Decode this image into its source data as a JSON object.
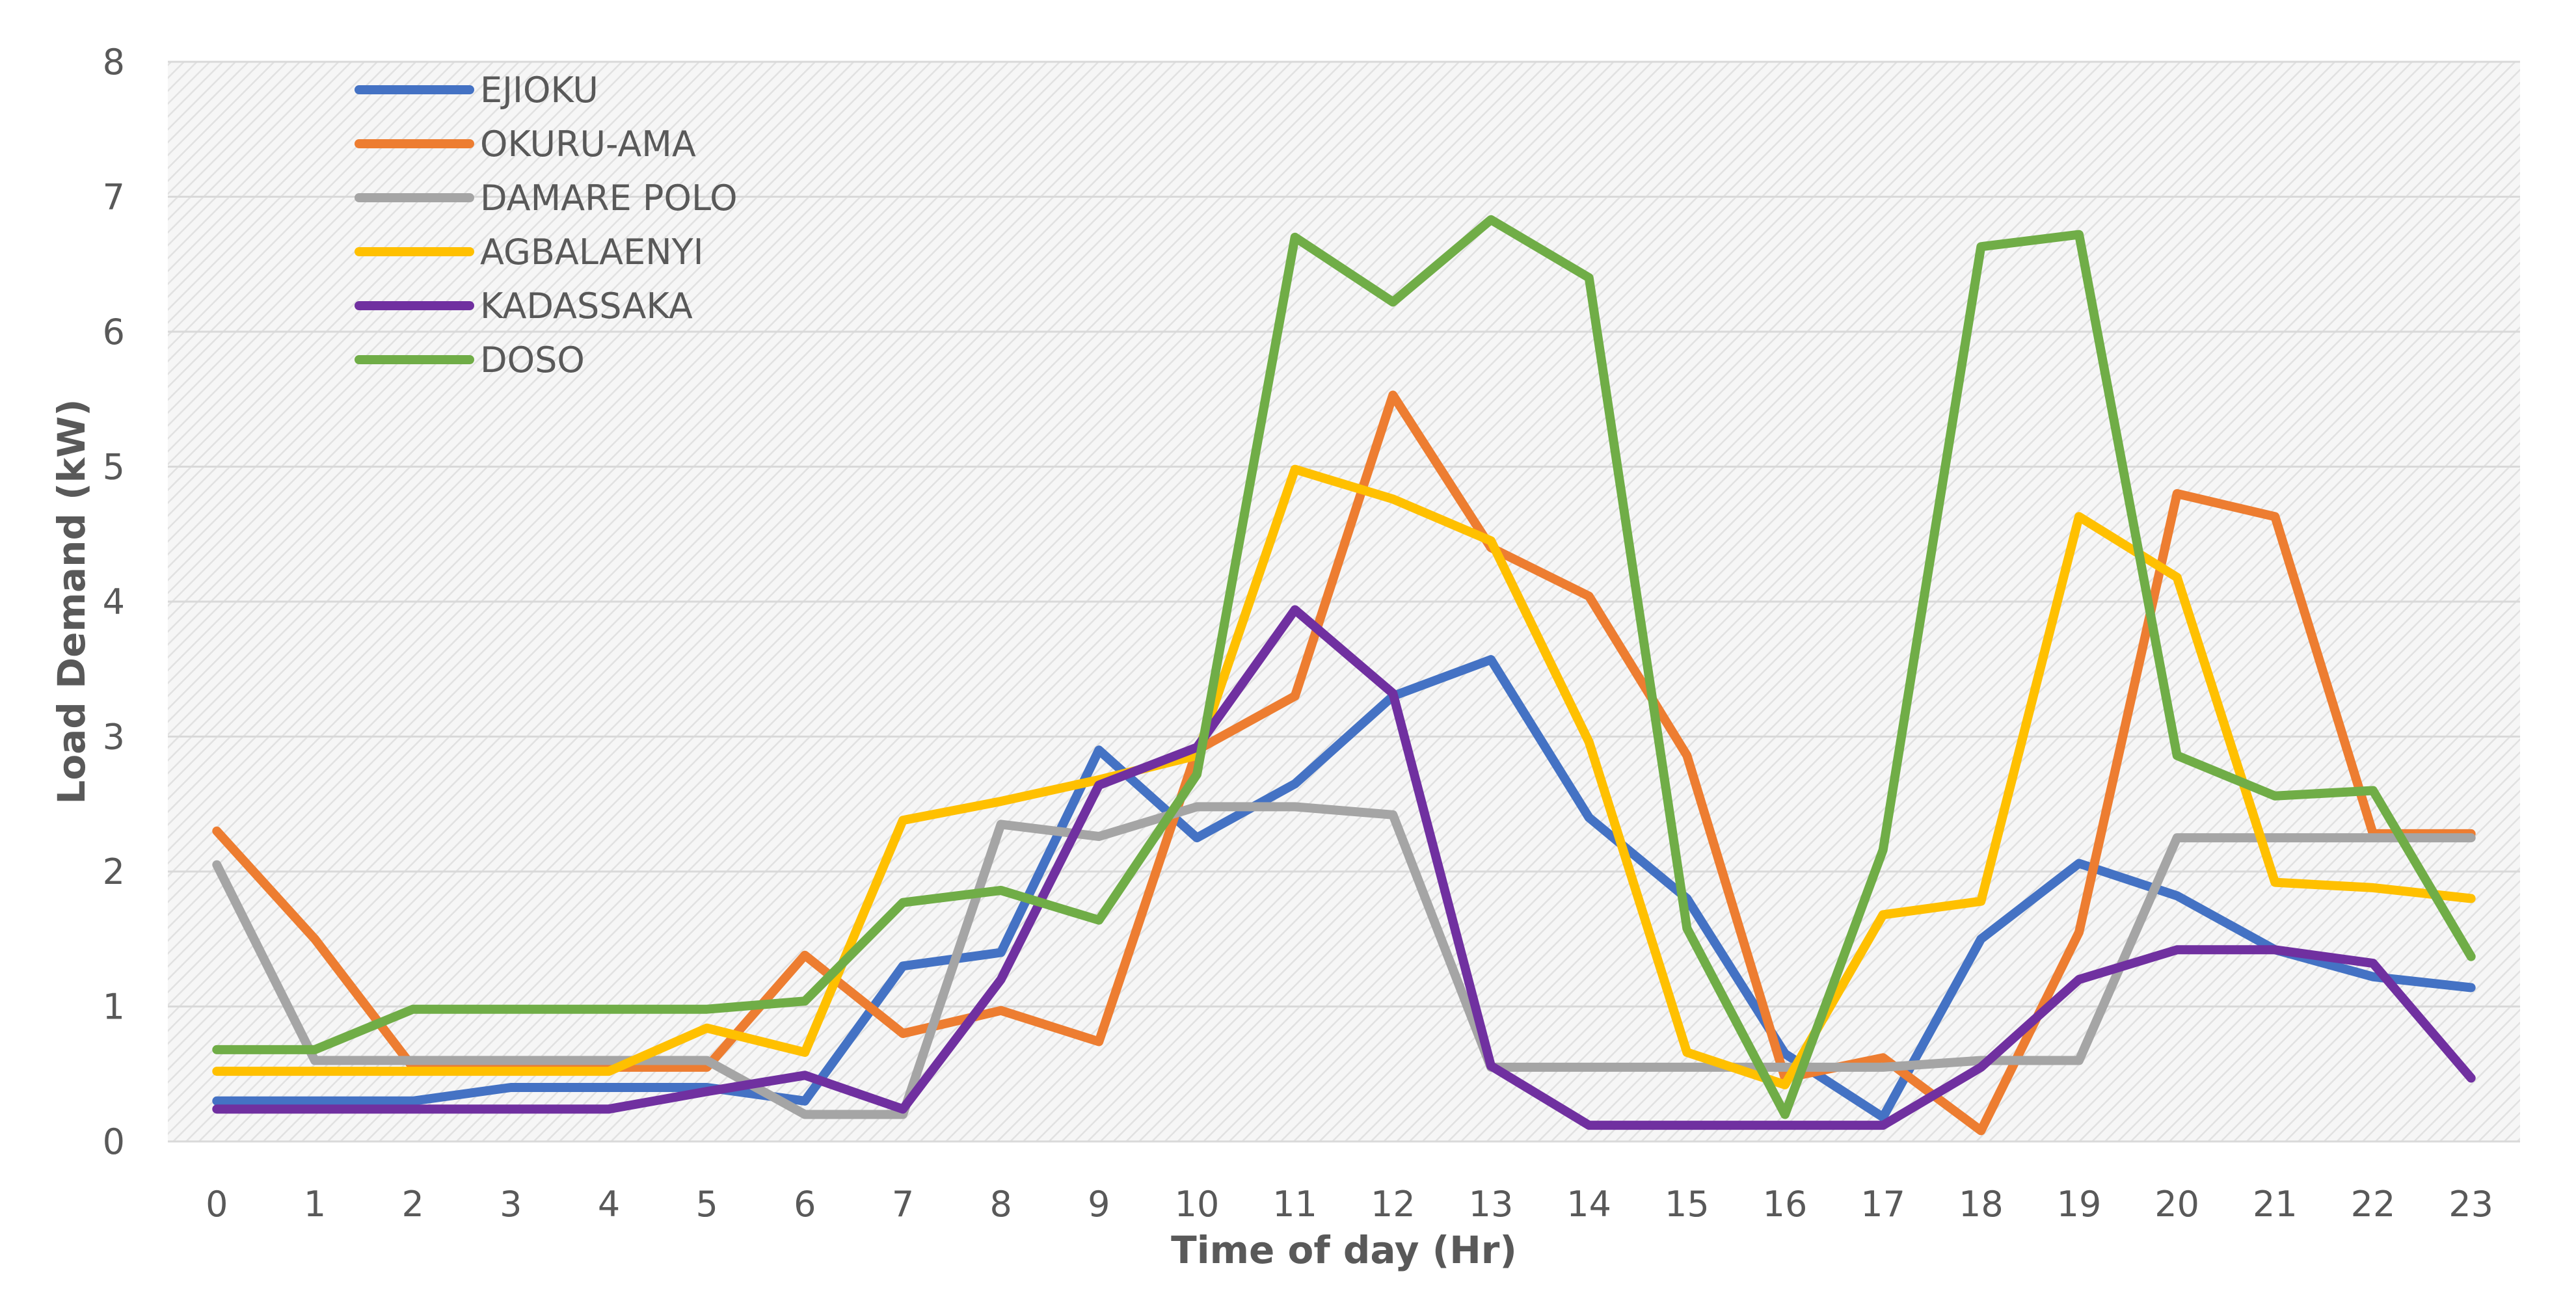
{
  "chart_data": {
    "type": "line",
    "title": "",
    "xlabel": "Time of day (Hr)",
    "ylabel": "Load Demand (kW)",
    "ylim": [
      0,
      8
    ],
    "yticks": [
      "0",
      "1",
      "2",
      "3",
      "4",
      "5",
      "6",
      "7",
      "8"
    ],
    "x": [
      "0",
      "1",
      "2",
      "3",
      "4",
      "5",
      "6",
      "7",
      "8",
      "9",
      "10",
      "11",
      "12",
      "13",
      "14",
      "15",
      "16",
      "17",
      "18",
      "19",
      "20",
      "21",
      "22",
      "23"
    ],
    "legend_position": "top-left",
    "grid": true,
    "series": [
      {
        "name": "EJIOKU",
        "color": "#4472C4",
        "values": [
          0.3,
          0.3,
          0.3,
          0.4,
          0.4,
          0.4,
          0.3,
          1.3,
          1.4,
          2.9,
          2.25,
          2.65,
          3.3,
          3.57,
          2.4,
          1.8,
          0.65,
          0.18,
          1.5,
          2.06,
          1.82,
          1.42,
          1.22,
          1.14
        ]
      },
      {
        "name": "OKURU-AMA",
        "color": "#ED7D31",
        "values": [
          2.3,
          1.5,
          0.55,
          0.55,
          0.55,
          0.55,
          1.38,
          0.8,
          0.97,
          0.74,
          2.9,
          3.3,
          5.53,
          4.4,
          4.04,
          2.86,
          0.47,
          0.62,
          0.08,
          1.55,
          4.8,
          4.63,
          2.28,
          2.28
        ]
      },
      {
        "name": "DAMARE POLO",
        "color": "#A5A5A5",
        "values": [
          2.05,
          0.6,
          0.6,
          0.6,
          0.6,
          0.6,
          0.2,
          0.2,
          2.35,
          2.26,
          2.48,
          2.48,
          2.42,
          0.55,
          0.55,
          0.55,
          0.55,
          0.55,
          0.6,
          0.6,
          2.25,
          2.25,
          2.25,
          2.25
        ]
      },
      {
        "name": "AGBALAENYI",
        "color": "#FFC000",
        "values": [
          0.52,
          0.52,
          0.52,
          0.52,
          0.52,
          0.84,
          0.66,
          2.38,
          2.52,
          2.68,
          2.86,
          4.98,
          4.76,
          4.45,
          2.96,
          0.66,
          0.42,
          1.68,
          1.78,
          4.63,
          4.18,
          1.92,
          1.88,
          1.8
        ]
      },
      {
        "name": "KADASSAKA",
        "color": "#7030A0",
        "values": [
          0.24,
          0.24,
          0.24,
          0.24,
          0.24,
          0.37,
          0.49,
          0.24,
          1.2,
          2.64,
          2.92,
          3.94,
          3.32,
          0.56,
          0.12,
          0.12,
          0.12,
          0.12,
          0.55,
          1.2,
          1.42,
          1.42,
          1.32,
          0.47
        ]
      },
      {
        "name": "DOSO",
        "color": "#70AD47",
        "values": [
          0.68,
          0.68,
          0.98,
          0.98,
          0.98,
          0.98,
          1.04,
          1.77,
          1.86,
          1.64,
          2.72,
          6.7,
          6.22,
          6.83,
          6.4,
          1.58,
          0.2,
          2.16,
          6.63,
          6.72,
          2.86,
          2.56,
          2.6,
          1.37
        ]
      }
    ]
  }
}
